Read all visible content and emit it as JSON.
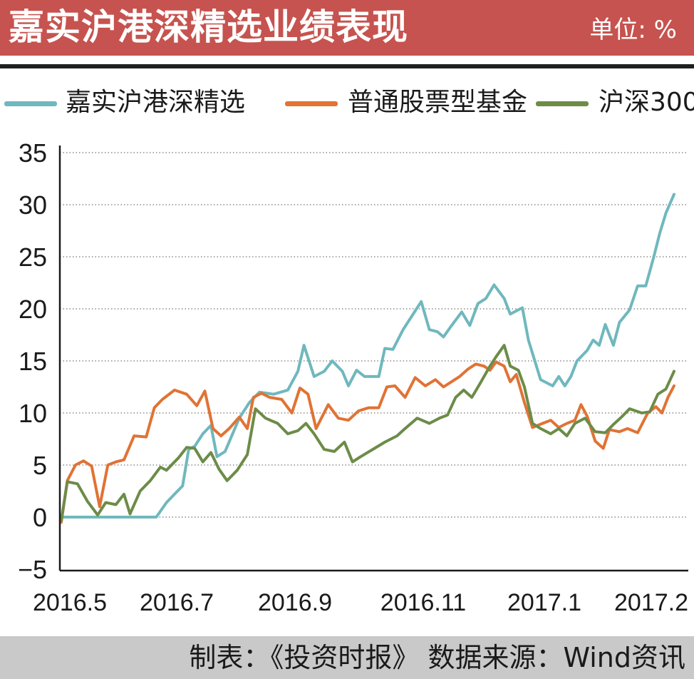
{
  "header": {
    "title": "嘉实沪港深精选业绩表现",
    "unit": "单位: %"
  },
  "footer": {
    "source": "制表：《投资时报》 数据来源：Wind资讯"
  },
  "colors": {
    "header_bg": "#c6534f",
    "series1": "#6fb8bd",
    "series2": "#e07335",
    "series3": "#6c8c48"
  },
  "chart_data": {
    "type": "line",
    "title": "嘉实沪港深精选业绩表现",
    "ylabel": "",
    "xlabel": "",
    "ylim": [
      -5,
      35
    ],
    "yticks": [
      35,
      30,
      25,
      20,
      15,
      10,
      5,
      0,
      -5
    ],
    "yticklabels": [
      "35",
      "30",
      "25",
      "20",
      "15",
      "10",
      "5",
      "0",
      "−5"
    ],
    "xticks": [
      {
        "x": "2016-05-01",
        "label": "2016.5"
      },
      {
        "x": "2016-07-01",
        "label": "2016.7"
      },
      {
        "x": "2016-09-01",
        "label": "2016.9"
      },
      {
        "x": "2016-11-01",
        "label": "2016.11"
      },
      {
        "x": "2017-01-01",
        "label": "2017.1"
      },
      {
        "x": "2017-02-01",
        "label": "2017.2"
      }
    ],
    "xlim": [
      "2016-05-01",
      "2017-02-28"
    ],
    "grid": "horizontal dotted",
    "legend": "top",
    "series": [
      {
        "name": "嘉实沪港深精选",
        "color": "#6fb8bd",
        "points": [
          [
            "2016-05-01",
            0
          ],
          [
            "2016-05-15",
            0
          ],
          [
            "2016-05-30",
            0
          ],
          [
            "2016-06-10",
            0
          ],
          [
            "2016-06-17",
            0
          ],
          [
            "2016-06-22",
            1.4
          ],
          [
            "2016-06-26",
            2.2
          ],
          [
            "2016-06-30",
            3
          ],
          [
            "2016-07-03",
            6.5
          ],
          [
            "2016-07-06",
            6.8
          ],
          [
            "2016-07-10",
            8
          ],
          [
            "2016-07-14",
            8.8
          ],
          [
            "2016-07-17",
            5.8
          ],
          [
            "2016-07-21",
            6.3
          ],
          [
            "2016-07-28",
            9.5
          ],
          [
            "2016-08-02",
            11
          ],
          [
            "2016-08-07",
            12
          ],
          [
            "2016-08-14",
            11.8
          ],
          [
            "2016-08-21",
            12.2
          ],
          [
            "2016-08-26",
            14
          ],
          [
            "2016-08-29",
            16.5
          ],
          [
            "2016-09-03",
            13.5
          ],
          [
            "2016-09-08",
            14
          ],
          [
            "2016-09-12",
            15
          ],
          [
            "2016-09-17",
            14
          ],
          [
            "2016-09-20",
            12.6
          ],
          [
            "2016-09-24",
            14.1
          ],
          [
            "2016-09-28",
            13.5
          ],
          [
            "2016-10-05",
            13.5
          ],
          [
            "2016-10-08",
            16.2
          ],
          [
            "2016-10-12",
            16.1
          ],
          [
            "2016-10-17",
            18
          ],
          [
            "2016-10-26",
            20.7
          ],
          [
            "2016-10-30",
            18
          ],
          [
            "2016-11-03",
            17.8
          ],
          [
            "2016-11-06",
            17.3
          ],
          [
            "2016-11-10",
            18.4
          ],
          [
            "2016-11-15",
            19.7
          ],
          [
            "2016-11-19",
            18.4
          ],
          [
            "2016-11-23",
            20.5
          ],
          [
            "2016-11-27",
            21
          ],
          [
            "2016-12-01",
            22.3
          ],
          [
            "2016-12-06",
            21
          ],
          [
            "2016-12-09",
            19.5
          ],
          [
            "2016-12-15",
            20.1
          ],
          [
            "2016-12-18",
            17
          ],
          [
            "2016-12-24",
            13.2
          ],
          [
            "2016-12-30",
            12.6
          ],
          [
            "2017-01-02",
            13.5
          ],
          [
            "2017-01-05",
            12.6
          ],
          [
            "2017-01-08",
            13.5
          ],
          [
            "2017-01-11",
            15
          ],
          [
            "2017-01-16",
            16
          ],
          [
            "2017-01-19",
            17
          ],
          [
            "2017-01-22",
            16.5
          ],
          [
            "2017-01-25",
            18.5
          ],
          [
            "2017-01-29",
            16.5
          ],
          [
            "2017-02-01",
            18.7
          ],
          [
            "2017-02-06",
            19.9
          ],
          [
            "2017-02-10",
            22.2
          ],
          [
            "2017-02-14",
            22.2
          ],
          [
            "2017-02-18",
            25
          ],
          [
            "2017-02-21",
            27.3
          ],
          [
            "2017-02-24",
            29.2
          ],
          [
            "2017-02-28",
            31
          ]
        ]
      },
      {
        "name": "普通股票型基金",
        "color": "#e07335",
        "points": [
          [
            "2016-05-01",
            -0.5
          ],
          [
            "2016-05-04",
            3.5
          ],
          [
            "2016-05-08",
            5
          ],
          [
            "2016-05-12",
            5.4
          ],
          [
            "2016-05-16",
            4.9
          ],
          [
            "2016-05-20",
            1
          ],
          [
            "2016-05-24",
            5
          ],
          [
            "2016-05-28",
            5.3
          ],
          [
            "2016-06-01",
            5.5
          ],
          [
            "2016-06-06",
            7.8
          ],
          [
            "2016-06-12",
            7.7
          ],
          [
            "2016-06-16",
            10.5
          ],
          [
            "2016-06-20",
            11.3
          ],
          [
            "2016-06-26",
            12.2
          ],
          [
            "2016-07-02",
            11.8
          ],
          [
            "2016-07-07",
            10.7
          ],
          [
            "2016-07-11",
            12.1
          ],
          [
            "2016-07-15",
            8.5
          ],
          [
            "2016-07-19",
            7.8
          ],
          [
            "2016-07-23",
            8.5
          ],
          [
            "2016-07-28",
            9.6
          ],
          [
            "2016-08-01",
            8.5
          ],
          [
            "2016-08-04",
            11.5
          ],
          [
            "2016-08-08",
            11.9
          ],
          [
            "2016-08-12",
            11.5
          ],
          [
            "2016-08-18",
            11.3
          ],
          [
            "2016-08-23",
            10
          ],
          [
            "2016-08-27",
            12.4
          ],
          [
            "2016-08-31",
            11.8
          ],
          [
            "2016-09-04",
            8.5
          ],
          [
            "2016-09-10",
            10.8
          ],
          [
            "2016-09-15",
            9.5
          ],
          [
            "2016-09-20",
            9.3
          ],
          [
            "2016-09-25",
            10.2
          ],
          [
            "2016-09-30",
            10.5
          ],
          [
            "2016-10-05",
            10.5
          ],
          [
            "2016-10-09",
            12.5
          ],
          [
            "2016-10-13",
            12.6
          ],
          [
            "2016-10-18",
            11.5
          ],
          [
            "2016-10-23",
            13.4
          ],
          [
            "2016-10-28",
            12.6
          ],
          [
            "2016-11-02",
            13.2
          ],
          [
            "2016-11-06",
            12.5
          ],
          [
            "2016-11-10",
            13
          ],
          [
            "2016-11-14",
            13.5
          ],
          [
            "2016-11-18",
            14.2
          ],
          [
            "2016-11-22",
            14.7
          ],
          [
            "2016-11-26",
            14.5
          ],
          [
            "2016-11-29",
            14.1
          ],
          [
            "2016-12-02",
            14.9
          ],
          [
            "2016-12-06",
            14.5
          ],
          [
            "2016-12-09",
            13
          ],
          [
            "2016-12-12",
            13.7
          ],
          [
            "2016-12-16",
            11
          ],
          [
            "2016-12-20",
            8.6
          ],
          [
            "2016-12-25",
            9
          ],
          [
            "2016-12-29",
            9.3
          ],
          [
            "2017-01-02",
            8.6
          ],
          [
            "2017-01-06",
            9
          ],
          [
            "2017-01-10",
            9.3
          ],
          [
            "2017-01-13",
            10.8
          ],
          [
            "2017-01-16",
            9.7
          ],
          [
            "2017-01-20",
            7.3
          ],
          [
            "2017-01-24",
            6.6
          ],
          [
            "2017-01-27",
            8.4
          ],
          [
            "2017-02-01",
            8.2
          ],
          [
            "2017-02-05",
            8.5
          ],
          [
            "2017-02-10",
            8.1
          ],
          [
            "2017-02-15",
            10
          ],
          [
            "2017-02-19",
            10.6
          ],
          [
            "2017-02-22",
            10
          ],
          [
            "2017-02-25",
            11.5
          ],
          [
            "2017-02-28",
            12.6
          ]
        ]
      },
      {
        "name": "沪深300",
        "color": "#6c8c48",
        "points": [
          [
            "2016-05-01",
            -0.3
          ],
          [
            "2016-05-04",
            3.4
          ],
          [
            "2016-05-09",
            3.2
          ],
          [
            "2016-05-14",
            1.5
          ],
          [
            "2016-05-19",
            0.2
          ],
          [
            "2016-05-23",
            1.4
          ],
          [
            "2016-05-28",
            1.2
          ],
          [
            "2016-06-01",
            2.2
          ],
          [
            "2016-06-04",
            0.3
          ],
          [
            "2016-06-09",
            2.5
          ],
          [
            "2016-06-14",
            3.5
          ],
          [
            "2016-06-19",
            4.8
          ],
          [
            "2016-06-22",
            4.5
          ],
          [
            "2016-06-28",
            5.7
          ],
          [
            "2016-07-02",
            6.7
          ],
          [
            "2016-07-06",
            6.6
          ],
          [
            "2016-07-10",
            5.3
          ],
          [
            "2016-07-14",
            6.2
          ],
          [
            "2016-07-18",
            4.6
          ],
          [
            "2016-07-22",
            3.5
          ],
          [
            "2016-07-27",
            4.5
          ],
          [
            "2016-08-01",
            6
          ],
          [
            "2016-08-05",
            10.4
          ],
          [
            "2016-08-10",
            9.5
          ],
          [
            "2016-08-16",
            9
          ],
          [
            "2016-08-21",
            8
          ],
          [
            "2016-08-26",
            8.3
          ],
          [
            "2016-08-30",
            9
          ],
          [
            "2016-09-03",
            8
          ],
          [
            "2016-09-08",
            6.5
          ],
          [
            "2016-09-13",
            6.3
          ],
          [
            "2016-09-18",
            7.2
          ],
          [
            "2016-09-22",
            5.3
          ],
          [
            "2016-09-26",
            5.8
          ],
          [
            "2016-10-02",
            6.5
          ],
          [
            "2016-10-08",
            7.2
          ],
          [
            "2016-10-14",
            7.8
          ],
          [
            "2016-10-18",
            8.5
          ],
          [
            "2016-10-24",
            9.5
          ],
          [
            "2016-10-30",
            9
          ],
          [
            "2016-11-04",
            9.5
          ],
          [
            "2016-11-08",
            9.8
          ],
          [
            "2016-11-12",
            11.5
          ],
          [
            "2016-11-16",
            12.2
          ],
          [
            "2016-11-20",
            11.5
          ],
          [
            "2016-11-24",
            12.8
          ],
          [
            "2016-11-29",
            14.5
          ],
          [
            "2016-12-02",
            15.4
          ],
          [
            "2016-12-06",
            16.5
          ],
          [
            "2016-12-09",
            14.5
          ],
          [
            "2016-12-13",
            14.1
          ],
          [
            "2016-12-16",
            12.5
          ],
          [
            "2016-12-20",
            9
          ],
          [
            "2016-12-24",
            8.5
          ],
          [
            "2016-12-29",
            8
          ],
          [
            "2017-01-02",
            8.5
          ],
          [
            "2017-01-06",
            7.8
          ],
          [
            "2017-01-10",
            9
          ],
          [
            "2017-01-15",
            9.5
          ],
          [
            "2017-01-20",
            8.2
          ],
          [
            "2017-01-25",
            8.1
          ],
          [
            "2017-01-29",
            8.9
          ],
          [
            "2017-02-02",
            9.6
          ],
          [
            "2017-02-06",
            10.4
          ],
          [
            "2017-02-12",
            10
          ],
          [
            "2017-02-16",
            10.1
          ],
          [
            "2017-02-20",
            11.8
          ],
          [
            "2017-02-24",
            12.3
          ],
          [
            "2017-02-28",
            14
          ]
        ]
      }
    ]
  }
}
